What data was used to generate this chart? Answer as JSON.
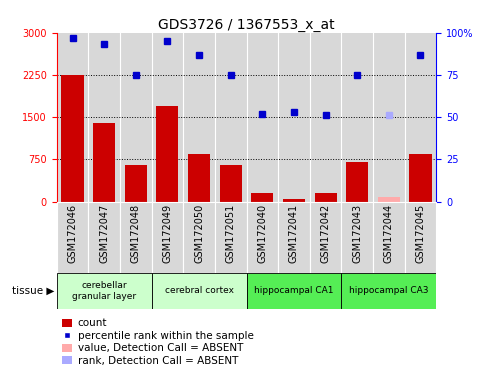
{
  "title": "GDS3726 / 1367553_x_at",
  "samples": [
    "GSM172046",
    "GSM172047",
    "GSM172048",
    "GSM172049",
    "GSM172050",
    "GSM172051",
    "GSM172040",
    "GSM172041",
    "GSM172042",
    "GSM172043",
    "GSM172044",
    "GSM172045"
  ],
  "count_values": [
    2250,
    1400,
    650,
    1700,
    850,
    650,
    150,
    50,
    150,
    700,
    null,
    850
  ],
  "count_absent": [
    null,
    null,
    null,
    null,
    null,
    null,
    null,
    null,
    null,
    null,
    80,
    null
  ],
  "rank_values": [
    97,
    93,
    75,
    95,
    87,
    75,
    52,
    53,
    51,
    75,
    null,
    87
  ],
  "rank_absent": [
    null,
    null,
    null,
    null,
    null,
    null,
    null,
    null,
    null,
    null,
    51,
    null
  ],
  "tissue_groups": [
    {
      "label": "cerebellar\ngranular layer",
      "start": 0,
      "end": 2,
      "color": "#ccffcc"
    },
    {
      "label": "cerebral cortex",
      "start": 3,
      "end": 5,
      "color": "#ccffcc"
    },
    {
      "label": "hippocampal CA1",
      "start": 6,
      "end": 8,
      "color": "#55ee55"
    },
    {
      "label": "hippocampal CA3",
      "start": 9,
      "end": 11,
      "color": "#55ee55"
    }
  ],
  "tissue_label": "tissue",
  "ylim_left": [
    0,
    3000
  ],
  "ylim_right": [
    0,
    100
  ],
  "yticks_left": [
    0,
    750,
    1500,
    2250,
    3000
  ],
  "yticks_right": [
    0,
    25,
    50,
    75,
    100
  ],
  "bar_color": "#cc0000",
  "bar_absent_color": "#ffaaaa",
  "rank_color": "#0000cc",
  "rank_absent_color": "#aaaaff",
  "grid_lines": [
    750,
    1500,
    2250
  ],
  "plot_bg_color": "#d8d8d8",
  "xlabel_bg_color": "#d8d8d8",
  "title_fontsize": 10,
  "tick_fontsize": 7,
  "label_fontsize": 7,
  "legend_fontsize": 7.5
}
